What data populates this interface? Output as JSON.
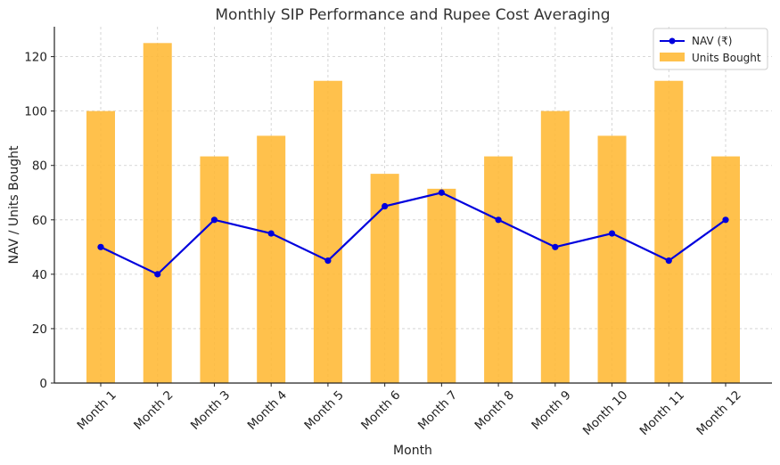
{
  "chart_data": {
    "type": "bar+line",
    "title": "Monthly SIP Performance and Rupee Cost Averaging",
    "xlabel": "Month",
    "ylabel": "NAV / Units Bought",
    "categories": [
      "Month 1",
      "Month 2",
      "Month 3",
      "Month 4",
      "Month 5",
      "Month 6",
      "Month 7",
      "Month 8",
      "Month 9",
      "Month 10",
      "Month 11",
      "Month 12"
    ],
    "series": [
      {
        "name": "NAV (₹)",
        "kind": "line",
        "color": "#0000dd",
        "values": [
          50,
          40,
          60,
          55,
          45,
          65,
          70,
          60,
          50,
          55,
          45,
          60
        ]
      },
      {
        "name": "Units Bought",
        "kind": "bar",
        "color": "#ffb833",
        "values": [
          100,
          125,
          83.33,
          90.91,
          111.11,
          76.92,
          71.43,
          83.33,
          100,
          90.91,
          111.11,
          83.33
        ]
      }
    ],
    "ylim": [
      0,
      131
    ],
    "yticks": [
      0,
      20,
      40,
      60,
      80,
      100,
      120
    ],
    "grid": true,
    "legend_position": "top-right"
  }
}
